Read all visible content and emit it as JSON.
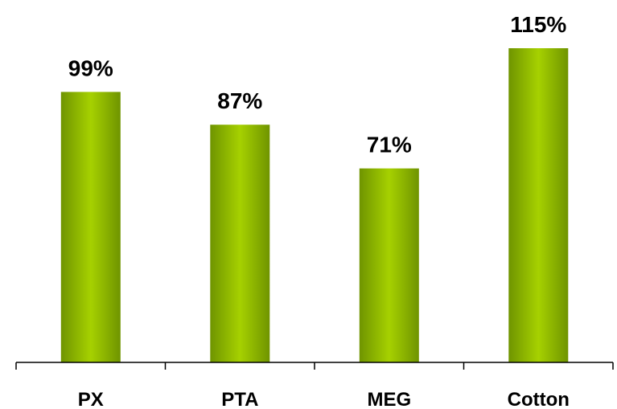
{
  "chart_data": {
    "type": "bar",
    "categories": [
      "PX",
      "PTA",
      "MEG",
      "Cotton"
    ],
    "values": [
      99,
      87,
      71,
      115
    ],
    "value_labels": [
      "99%",
      "87%",
      "71%",
      "115%"
    ],
    "title": "",
    "xlabel": "",
    "ylabel": "",
    "ylim": [
      0,
      115
    ],
    "grid": false,
    "legend": "none",
    "colors": {
      "bar_edge": "#6f9400",
      "bar_mid": "#a6d100",
      "axis": "#000000"
    }
  }
}
